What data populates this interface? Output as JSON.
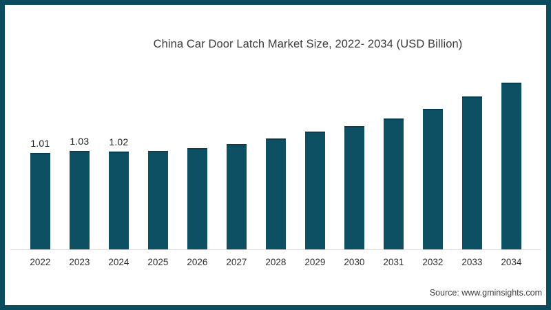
{
  "page": {
    "background": "#ffffff",
    "border_color": "#0c4c5f"
  },
  "chart_data": {
    "type": "bar",
    "title": "China Car Door Latch Market Size, 2022- 2034 (USD Billion)",
    "categories": [
      "2022",
      "2023",
      "2024",
      "2025",
      "2026",
      "2027",
      "2028",
      "2029",
      "2030",
      "2031",
      "2032",
      "2033",
      "2034"
    ],
    "values": [
      1.01,
      1.03,
      1.02,
      1.03,
      1.06,
      1.1,
      1.16,
      1.23,
      1.29,
      1.37,
      1.47,
      1.6,
      1.74
    ],
    "data_labels": [
      "1.01",
      "1.03",
      "1.02",
      "",
      "",
      "",
      "",
      "",
      "",
      "",
      "",
      "",
      ""
    ],
    "unit": "USD Billion",
    "xlabel": "",
    "ylabel": "",
    "ylim": [
      0,
      2.55
    ],
    "y_axis_visible": false,
    "grid": false,
    "legend": false,
    "bar_color": "#0e5063",
    "axis_line_color": "#dcdcdc"
  },
  "footer": {
    "source_label": "Source: www.gminsights.com"
  }
}
